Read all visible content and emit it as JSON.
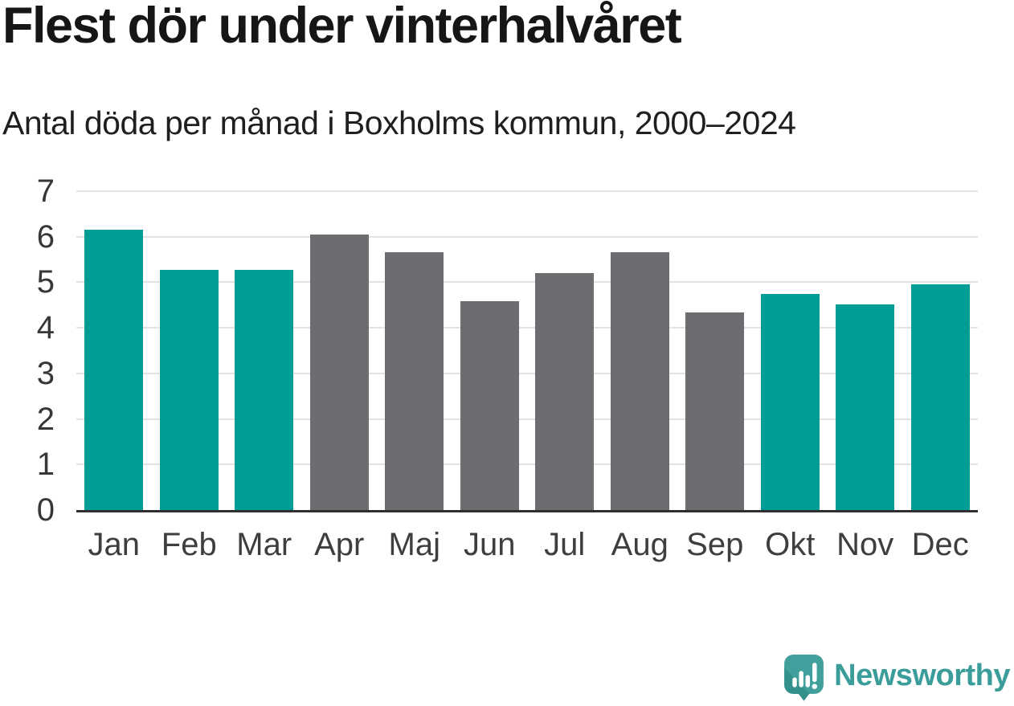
{
  "header": {
    "title": "Flest dör under vinterhalvåret",
    "subtitle": "Antal döda per månad i Boxholms kommun, 2000–2024"
  },
  "chart_data": {
    "type": "bar",
    "title": "Flest dör under vinterhalvåret",
    "subtitle": "Antal döda per månad i Boxholms kommun, 2000–2024",
    "categories": [
      "Jan",
      "Feb",
      "Mar",
      "Apr",
      "Maj",
      "Jun",
      "Jul",
      "Aug",
      "Sep",
      "Okt",
      "Nov",
      "Dec"
    ],
    "values": [
      6.16,
      5.27,
      5.27,
      6.04,
      5.66,
      4.59,
      5.2,
      5.66,
      4.33,
      4.75,
      4.51,
      4.96
    ],
    "color_keys": [
      "winter",
      "winter",
      "winter",
      "summer",
      "summer",
      "summer",
      "summer",
      "summer",
      "summer",
      "winter",
      "winter",
      "winter"
    ],
    "xlabel": "",
    "ylabel": "",
    "ylim": [
      0,
      7
    ],
    "yticks": [
      0,
      1,
      2,
      3,
      4,
      5,
      6,
      7
    ],
    "grid": true,
    "legend": "none"
  },
  "colors": {
    "winter_bar": "#009c96",
    "summer_bar": "#6c6c71",
    "gridline": "#e2e2e2",
    "baseline": "#2f2f2f",
    "logo_teal": "#41a09b",
    "logo_teal_shadow": "#33908b",
    "brand_text": "#3a9d99"
  },
  "footer": {
    "brand": "Newsworthy",
    "logo_icon": "newsworthy-chart-speech-bubble-icon"
  }
}
